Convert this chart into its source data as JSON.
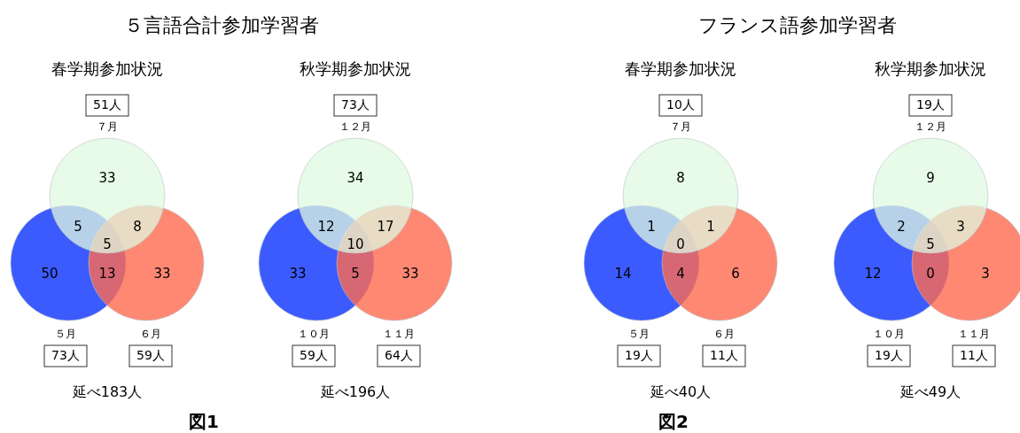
{
  "chart_data": [
    {
      "type": "other",
      "title": "５言語合計参加学習者",
      "subtitle": "春学期参加状況",
      "categories": [
        "７月",
        "５月",
        "６月"
      ],
      "values": [
        51,
        73,
        59
      ],
      "value_labels": [
        "51人",
        "73人",
        "59人"
      ],
      "colors": [
        "#e0f8e0",
        "#3b5bff",
        "#ff6a50"
      ],
      "annotations": [
        "33",
        "50",
        "33",
        "5",
        "8",
        "13",
        "5",
        "延べ183人",
        "図1"
      ]
    },
    {
      "type": "other",
      "subtitle": "秋学期参加状況",
      "categories": [
        "１２月",
        "１０月",
        "１１月"
      ],
      "values": [
        73,
        59,
        64
      ],
      "value_labels": [
        "73人",
        "59人",
        "64人"
      ],
      "colors": [
        "#e0f8e0",
        "#3b5bff",
        "#ff6a50"
      ],
      "annotations": [
        "34",
        "33",
        "33",
        "12",
        "17",
        "5",
        "10",
        "延べ196人"
      ]
    },
    {
      "type": "other",
      "title": "フランス語参加学習者",
      "subtitle": "春学期参加状況",
      "categories": [
        "７月",
        "５月",
        "６月"
      ],
      "values": [
        10,
        19,
        11
      ],
      "value_labels": [
        "10人",
        "19人",
        "11人"
      ],
      "colors": [
        "#e0f8e0",
        "#3b5bff",
        "#ff6a50"
      ],
      "annotations": [
        "8",
        "14",
        "6",
        "1",
        "1",
        "4",
        "0",
        "延べ40人",
        "図2"
      ]
    },
    {
      "type": "other",
      "subtitle": "秋学期参加状況",
      "categories": [
        "１２月",
        "１０月",
        "１１月"
      ],
      "values": [
        19,
        19,
        11
      ],
      "value_labels": [
        "19人",
        "19人",
        "11人"
      ],
      "colors": [
        "#e0f8e0",
        "#3b5bff",
        "#ff6a50"
      ],
      "annotations": [
        "9",
        "12",
        "3",
        "2",
        "3",
        "0",
        "5",
        "延べ49人"
      ]
    }
  ]
}
